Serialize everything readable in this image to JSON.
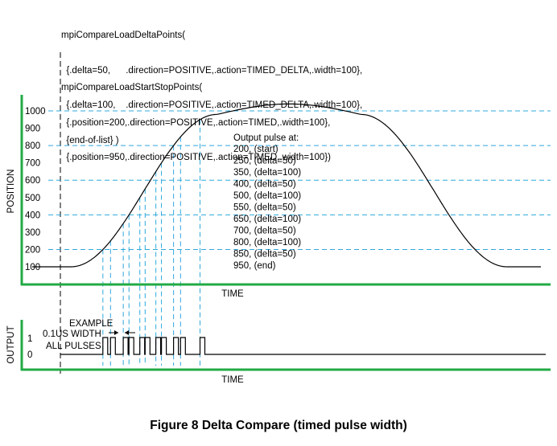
{
  "code_block_1": [
    "mpiCompareLoadDeltaPoints(",
    "  {.delta=50,      .direction=POSITIVE,.action=TIMED_DELTA,.width=100},",
    "  {.delta=100,    .direction=POSITIVE,.action=TIMED_DELTA,.width=100},",
    "  {end-of-list} )"
  ],
  "code_block_2": [
    "mpiCompareLoadStartStopPoints(",
    "  {.position=200,.direction=POSITIVE,.action=TIMED,.width=100},",
    "  {.position=950,.direction=POSITIVE,.action=TIMED,.width=100})"
  ],
  "position_chart": {
    "ylabel": "POSITION",
    "xlabel": "TIME",
    "y_ticks": [
      "100",
      "200",
      "300",
      "400",
      "500",
      "600",
      "700",
      "800",
      "900",
      "1000"
    ],
    "note_title": "Output pulse at:",
    "note_lines": [
      "200, (start)",
      "250, (delta=50)",
      "350, (delta=100)",
      "400, (delta=50)",
      "500, (delta=100)",
      "550, (delta=50)",
      "650, (delta=100)",
      "700, (delta=50)",
      "800, (delta=100)",
      "850, (delta=50)",
      "950, (end)"
    ],
    "pulse_positions": [
      200,
      250,
      350,
      400,
      500,
      550,
      650,
      700,
      800,
      850,
      950
    ],
    "dashed_levels": [
      200,
      400,
      600,
      800,
      1000
    ]
  },
  "output_chart": {
    "ylabel": "OUTPUT",
    "xlabel": "TIME",
    "y_ticks": [
      "0",
      "1"
    ],
    "example_lines": [
      "EXAMPLE",
      "0.1US WIDTH",
      "ALL PULSES"
    ]
  },
  "colors": {
    "axis": "#22aa44",
    "guide": "#2fa8dc",
    "curve": "#000000"
  },
  "caption": "Figure 8 Delta Compare (timed pulse width)"
}
